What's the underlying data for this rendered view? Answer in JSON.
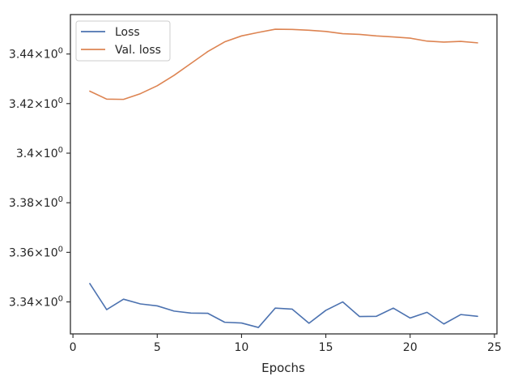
{
  "chart_data": {
    "type": "line",
    "title": "",
    "xlabel": "Epochs",
    "ylabel": "",
    "x": [
      1,
      2,
      3,
      4,
      5,
      6,
      7,
      8,
      9,
      10,
      11,
      12,
      13,
      14,
      15,
      16,
      17,
      18,
      19,
      20,
      21,
      22,
      23,
      24
    ],
    "series": [
      {
        "name": "Loss",
        "color": "#4c72b0",
        "values": [
          3.3474,
          3.3369,
          3.3411,
          3.3392,
          3.3384,
          3.3363,
          3.3355,
          3.3354,
          3.3318,
          3.3315,
          3.3297,
          3.3375,
          3.3371,
          3.3314,
          3.3366,
          3.34,
          3.3341,
          3.3342,
          3.3375,
          3.3335,
          3.3358,
          3.3311,
          3.3349,
          3.3342
        ]
      },
      {
        "name": "Val. loss",
        "color": "#dd8452",
        "values": [
          3.425,
          3.4218,
          3.4217,
          3.424,
          3.4272,
          3.4314,
          3.4362,
          3.441,
          3.4449,
          3.4473,
          3.4487,
          3.45,
          3.4499,
          3.4496,
          3.4491,
          3.4482,
          3.4479,
          3.4473,
          3.4469,
          3.4464,
          3.4452,
          3.4448,
          3.4451,
          3.4445
        ]
      }
    ],
    "xlim": [
      -0.15,
      25.15
    ],
    "ylim": [
      3.3271,
      3.4559
    ],
    "xticks": [
      0,
      5,
      10,
      15,
      20,
      25
    ],
    "xtick_labels": [
      "0",
      "5",
      "10",
      "15",
      "20",
      "25"
    ],
    "yticks": [
      3.34,
      3.36,
      3.38,
      3.4,
      3.42,
      3.44
    ],
    "ytick_labels": [
      "3.34×10⁰",
      "3.36×10⁰",
      "3.38×10⁰",
      "3.4×10⁰",
      "3.42×10⁰",
      "3.44×10⁰"
    ],
    "ytick_base_labels": [
      "3.34",
      "3.36",
      "3.38",
      "3.4",
      "3.42",
      "3.44"
    ],
    "ytick_exp_base": "10",
    "ytick_exp": "0",
    "ytick_times": "×",
    "grid": false,
    "legend_position": "top-left"
  }
}
